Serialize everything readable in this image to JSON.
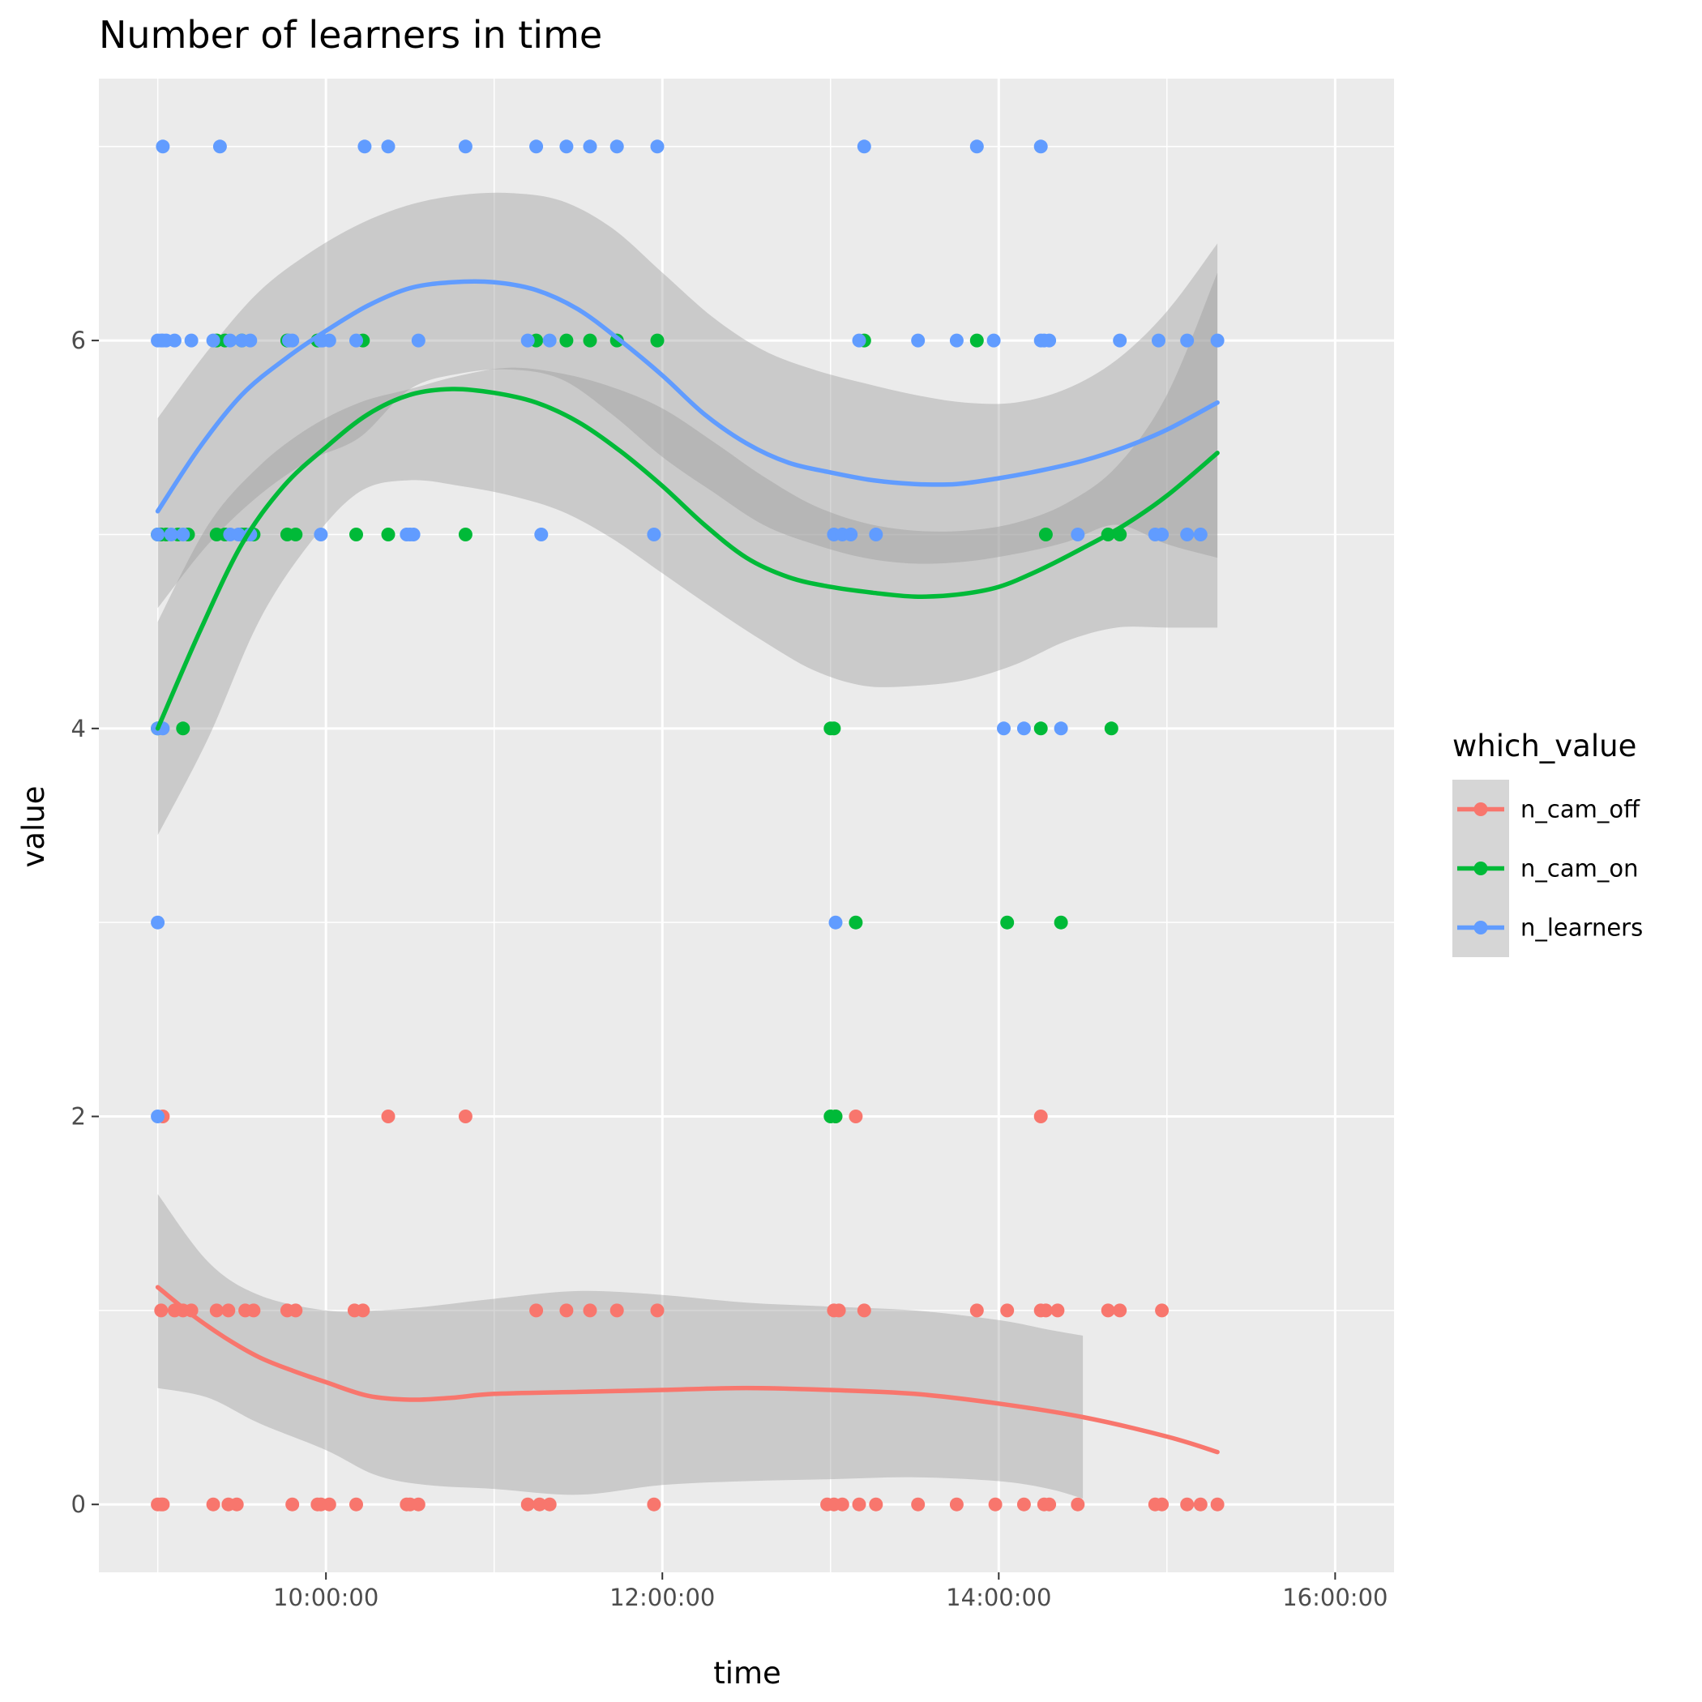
{
  "chart_data": {
    "type": "scatter",
    "title": "Number of learners in time",
    "xlabel": "time",
    "ylabel": "value",
    "x_unit": "hours",
    "xlim": [
      8.65,
      16.35
    ],
    "ylim": [
      -0.35,
      7.35
    ],
    "x_ticks": [
      {
        "value": 10,
        "label": "10:00:00"
      },
      {
        "value": 12,
        "label": "12:00:00"
      },
      {
        "value": 14,
        "label": "14:00:00"
      },
      {
        "value": 16,
        "label": "16:00:00"
      }
    ],
    "y_ticks": [
      {
        "value": 0,
        "label": "0"
      },
      {
        "value": 2,
        "label": "2"
      },
      {
        "value": 4,
        "label": "4"
      },
      {
        "value": 6,
        "label": "6"
      }
    ],
    "grid": true,
    "background": "#EBEBEB",
    "legend": {
      "title": "which_value",
      "position": "right"
    },
    "series": [
      {
        "name": "n_cam_off",
        "color": "#F8766D",
        "points": [
          [
            9.0,
            0
          ],
          [
            9.02,
            0
          ],
          [
            9.03,
            0
          ],
          [
            9.33,
            0
          ],
          [
            9.42,
            0
          ],
          [
            9.47,
            0
          ],
          [
            9.8,
            0
          ],
          [
            9.95,
            0
          ],
          [
            9.97,
            0
          ],
          [
            10.02,
            0
          ],
          [
            10.18,
            0
          ],
          [
            10.48,
            0
          ],
          [
            10.5,
            0
          ],
          [
            10.55,
            0
          ],
          [
            11.2,
            0
          ],
          [
            11.27,
            0
          ],
          [
            11.33,
            0
          ],
          [
            11.95,
            0
          ],
          [
            12.98,
            0
          ],
          [
            13.02,
            0
          ],
          [
            13.07,
            0
          ],
          [
            13.17,
            0
          ],
          [
            13.27,
            0
          ],
          [
            13.52,
            0
          ],
          [
            13.75,
            0
          ],
          [
            13.98,
            0
          ],
          [
            14.15,
            0
          ],
          [
            14.27,
            0
          ],
          [
            14.3,
            0
          ],
          [
            14.47,
            0
          ],
          [
            14.93,
            0
          ],
          [
            14.97,
            0
          ],
          [
            15.12,
            0
          ],
          [
            15.2,
            0
          ],
          [
            15.3,
            0
          ],
          [
            9.02,
            1
          ],
          [
            9.1,
            1
          ],
          [
            9.15,
            1
          ],
          [
            9.2,
            1
          ],
          [
            9.35,
            1
          ],
          [
            9.42,
            1
          ],
          [
            9.52,
            1
          ],
          [
            9.57,
            1
          ],
          [
            9.77,
            1
          ],
          [
            9.82,
            1
          ],
          [
            10.17,
            1
          ],
          [
            10.22,
            1
          ],
          [
            11.25,
            1
          ],
          [
            11.43,
            1
          ],
          [
            11.57,
            1
          ],
          [
            11.73,
            1
          ],
          [
            11.97,
            1
          ],
          [
            13.02,
            1
          ],
          [
            13.05,
            1
          ],
          [
            13.2,
            1
          ],
          [
            13.87,
            1
          ],
          [
            14.05,
            1
          ],
          [
            14.25,
            1
          ],
          [
            14.28,
            1
          ],
          [
            14.35,
            1
          ],
          [
            14.65,
            1
          ],
          [
            14.72,
            1
          ],
          [
            14.97,
            1
          ],
          [
            9.03,
            2
          ],
          [
            10.37,
            2
          ],
          [
            10.83,
            2
          ],
          [
            13.03,
            2
          ],
          [
            13.15,
            2
          ],
          [
            14.25,
            2
          ]
        ],
        "smooth": {
          "x": [
            9.0,
            9.2,
            9.4,
            9.6,
            9.8,
            10.0,
            10.25,
            10.5,
            10.75,
            11.0,
            11.5,
            12.0,
            12.5,
            13.0,
            13.5,
            14.0,
            14.5,
            15.0,
            15.3
          ],
          "y": [
            1.12,
            0.98,
            0.86,
            0.76,
            0.69,
            0.63,
            0.56,
            0.54,
            0.55,
            0.57,
            0.58,
            0.59,
            0.6,
            0.59,
            0.57,
            0.52,
            0.45,
            0.35,
            0.27
          ],
          "ci_x": [
            9.0,
            9.3,
            9.6,
            10.0,
            10.3,
            10.6,
            11.0,
            11.5,
            12.0,
            12.5,
            13.0,
            13.5,
            14.0,
            14.3,
            14.5
          ],
          "ci_upper": [
            1.6,
            1.25,
            1.08,
            1.0,
            1.0,
            1.02,
            1.06,
            1.1,
            1.08,
            1.04,
            1.02,
            1.0,
            0.95,
            0.9,
            0.87
          ],
          "ci_lower": [
            0.6,
            0.55,
            0.42,
            0.28,
            0.15,
            0.1,
            0.08,
            0.05,
            0.1,
            0.12,
            0.13,
            0.14,
            0.12,
            0.08,
            0.03
          ]
        }
      },
      {
        "name": "n_cam_on",
        "color": "#00BA38",
        "points": [
          [
            9.0,
            4
          ],
          [
            9.15,
            4
          ],
          [
            9.0,
            5
          ],
          [
            9.02,
            5
          ],
          [
            9.05,
            5
          ],
          [
            9.12,
            5
          ],
          [
            9.18,
            5
          ],
          [
            9.35,
            5
          ],
          [
            9.4,
            5
          ],
          [
            9.5,
            5
          ],
          [
            9.52,
            5
          ],
          [
            9.57,
            5
          ],
          [
            9.77,
            5
          ],
          [
            9.82,
            5
          ],
          [
            10.18,
            5
          ],
          [
            10.37,
            5
          ],
          [
            10.83,
            5
          ],
          [
            14.28,
            5
          ],
          [
            14.65,
            5
          ],
          [
            14.72,
            5
          ],
          [
            9.35,
            6
          ],
          [
            9.4,
            6
          ],
          [
            9.5,
            6
          ],
          [
            9.77,
            6
          ],
          [
            9.95,
            6
          ],
          [
            10.22,
            6
          ],
          [
            11.25,
            6
          ],
          [
            11.43,
            6
          ],
          [
            11.57,
            6
          ],
          [
            11.73,
            6
          ],
          [
            11.97,
            6
          ],
          [
            13.2,
            6
          ],
          [
            13.87,
            6
          ],
          [
            13.0,
            4
          ],
          [
            13.02,
            4
          ],
          [
            14.25,
            4
          ],
          [
            14.67,
            4
          ],
          [
            13.0,
            2
          ],
          [
            13.03,
            2
          ],
          [
            13.15,
            3
          ],
          [
            14.05,
            3
          ],
          [
            14.37,
            3
          ]
        ],
        "smooth": {
          "x": [
            9.0,
            9.25,
            9.5,
            9.75,
            10.0,
            10.25,
            10.5,
            10.75,
            11.0,
            11.25,
            11.5,
            11.75,
            12.0,
            12.25,
            12.5,
            12.75,
            13.0,
            13.25,
            13.5,
            13.75,
            14.0,
            14.25,
            14.5,
            14.75,
            15.0,
            15.3
          ],
          "y": [
            4.0,
            4.5,
            4.95,
            5.25,
            5.45,
            5.62,
            5.72,
            5.75,
            5.73,
            5.68,
            5.58,
            5.43,
            5.25,
            5.05,
            4.88,
            4.78,
            4.73,
            4.7,
            4.68,
            4.69,
            4.73,
            4.82,
            4.93,
            5.05,
            5.2,
            5.42
          ],
          "ci_x": [
            9.0,
            9.3,
            9.6,
            9.9,
            10.2,
            10.5,
            10.8,
            11.1,
            11.4,
            11.7,
            12.0,
            12.3,
            12.6,
            12.9,
            13.2,
            13.5,
            13.8,
            14.1,
            14.4,
            14.7,
            15.0,
            15.3
          ],
          "ci_upper": [
            4.55,
            5.05,
            5.35,
            5.55,
            5.68,
            5.75,
            5.82,
            5.86,
            5.83,
            5.76,
            5.65,
            5.48,
            5.3,
            5.15,
            5.06,
            5.02,
            5.02,
            5.06,
            5.16,
            5.35,
            5.72,
            6.35
          ],
          "ci_lower": [
            3.45,
            3.95,
            4.55,
            4.95,
            5.22,
            5.28,
            5.25,
            5.2,
            5.12,
            4.98,
            4.8,
            4.62,
            4.45,
            4.3,
            4.22,
            4.22,
            4.25,
            4.33,
            4.45,
            4.52,
            4.52,
            4.52
          ]
        }
      },
      {
        "name": "n_learners",
        "color": "#619CFF",
        "points": [
          [
            9.0,
            2
          ],
          [
            9.0,
            3
          ],
          [
            9.0,
            4
          ],
          [
            9.03,
            4
          ],
          [
            9.0,
            5
          ],
          [
            9.08,
            5
          ],
          [
            9.15,
            5
          ],
          [
            9.43,
            5
          ],
          [
            9.48,
            5
          ],
          [
            9.55,
            5
          ],
          [
            9.97,
            5
          ],
          [
            10.48,
            5
          ],
          [
            10.5,
            5
          ],
          [
            10.52,
            5
          ],
          [
            11.28,
            5
          ],
          [
            11.95,
            5
          ],
          [
            13.02,
            5
          ],
          [
            13.07,
            5
          ],
          [
            13.12,
            5
          ],
          [
            13.27,
            5
          ],
          [
            14.47,
            5
          ],
          [
            14.93,
            5
          ],
          [
            14.97,
            5
          ],
          [
            15.12,
            5
          ],
          [
            15.2,
            5
          ],
          [
            9.0,
            6
          ],
          [
            9.02,
            6
          ],
          [
            9.03,
            6
          ],
          [
            9.05,
            6
          ],
          [
            9.1,
            6
          ],
          [
            9.2,
            6
          ],
          [
            9.33,
            6
          ],
          [
            9.43,
            6
          ],
          [
            9.5,
            6
          ],
          [
            9.55,
            6
          ],
          [
            9.78,
            6
          ],
          [
            9.8,
            6
          ],
          [
            9.97,
            6
          ],
          [
            9.98,
            6
          ],
          [
            10.02,
            6
          ],
          [
            10.18,
            6
          ],
          [
            10.55,
            6
          ],
          [
            11.2,
            6
          ],
          [
            11.33,
            6
          ],
          [
            13.17,
            6
          ],
          [
            13.52,
            6
          ],
          [
            13.75,
            6
          ],
          [
            13.97,
            6
          ],
          [
            14.25,
            6
          ],
          [
            14.27,
            6
          ],
          [
            14.3,
            6
          ],
          [
            14.72,
            6
          ],
          [
            14.95,
            6
          ],
          [
            15.12,
            6
          ],
          [
            15.3,
            6
          ],
          [
            9.03,
            7
          ],
          [
            9.37,
            7
          ],
          [
            10.23,
            7
          ],
          [
            10.37,
            7
          ],
          [
            10.83,
            7
          ],
          [
            11.25,
            7
          ],
          [
            11.43,
            7
          ],
          [
            11.57,
            7
          ],
          [
            11.73,
            7
          ],
          [
            11.97,
            7
          ],
          [
            13.2,
            7
          ],
          [
            13.87,
            7
          ],
          [
            14.25,
            7
          ],
          [
            13.03,
            3
          ],
          [
            14.03,
            4
          ],
          [
            14.15,
            4
          ],
          [
            14.37,
            4
          ]
        ],
        "smooth": {
          "x": [
            9.0,
            9.25,
            9.5,
            9.75,
            10.0,
            10.25,
            10.5,
            10.75,
            11.0,
            11.25,
            11.5,
            11.75,
            12.0,
            12.25,
            12.5,
            12.75,
            13.0,
            13.25,
            13.5,
            13.75,
            14.0,
            14.25,
            14.5,
            14.75,
            15.0,
            15.3
          ],
          "y": [
            5.12,
            5.45,
            5.72,
            5.9,
            6.05,
            6.18,
            6.27,
            6.3,
            6.3,
            6.26,
            6.16,
            6.0,
            5.82,
            5.62,
            5.47,
            5.37,
            5.32,
            5.28,
            5.26,
            5.26,
            5.29,
            5.33,
            5.38,
            5.45,
            5.54,
            5.68
          ],
          "ci_x": [
            9.0,
            9.3,
            9.6,
            9.9,
            10.2,
            10.5,
            10.8,
            11.1,
            11.4,
            11.7,
            12.0,
            12.3,
            12.6,
            12.9,
            13.2,
            13.5,
            13.8,
            14.1,
            14.4,
            14.7,
            15.0,
            15.3
          ],
          "ci_upper": [
            5.6,
            5.95,
            6.25,
            6.45,
            6.6,
            6.7,
            6.75,
            6.76,
            6.72,
            6.58,
            6.35,
            6.12,
            5.95,
            5.85,
            5.78,
            5.72,
            5.68,
            5.68,
            5.75,
            5.9,
            6.15,
            6.5
          ],
          "ci_lower": [
            4.62,
            4.95,
            5.2,
            5.38,
            5.5,
            5.75,
            5.83,
            5.85,
            5.8,
            5.62,
            5.4,
            5.22,
            5.05,
            4.95,
            4.88,
            4.85,
            4.86,
            4.9,
            4.96,
            5.05,
            4.95,
            4.88
          ]
        }
      }
    ]
  }
}
